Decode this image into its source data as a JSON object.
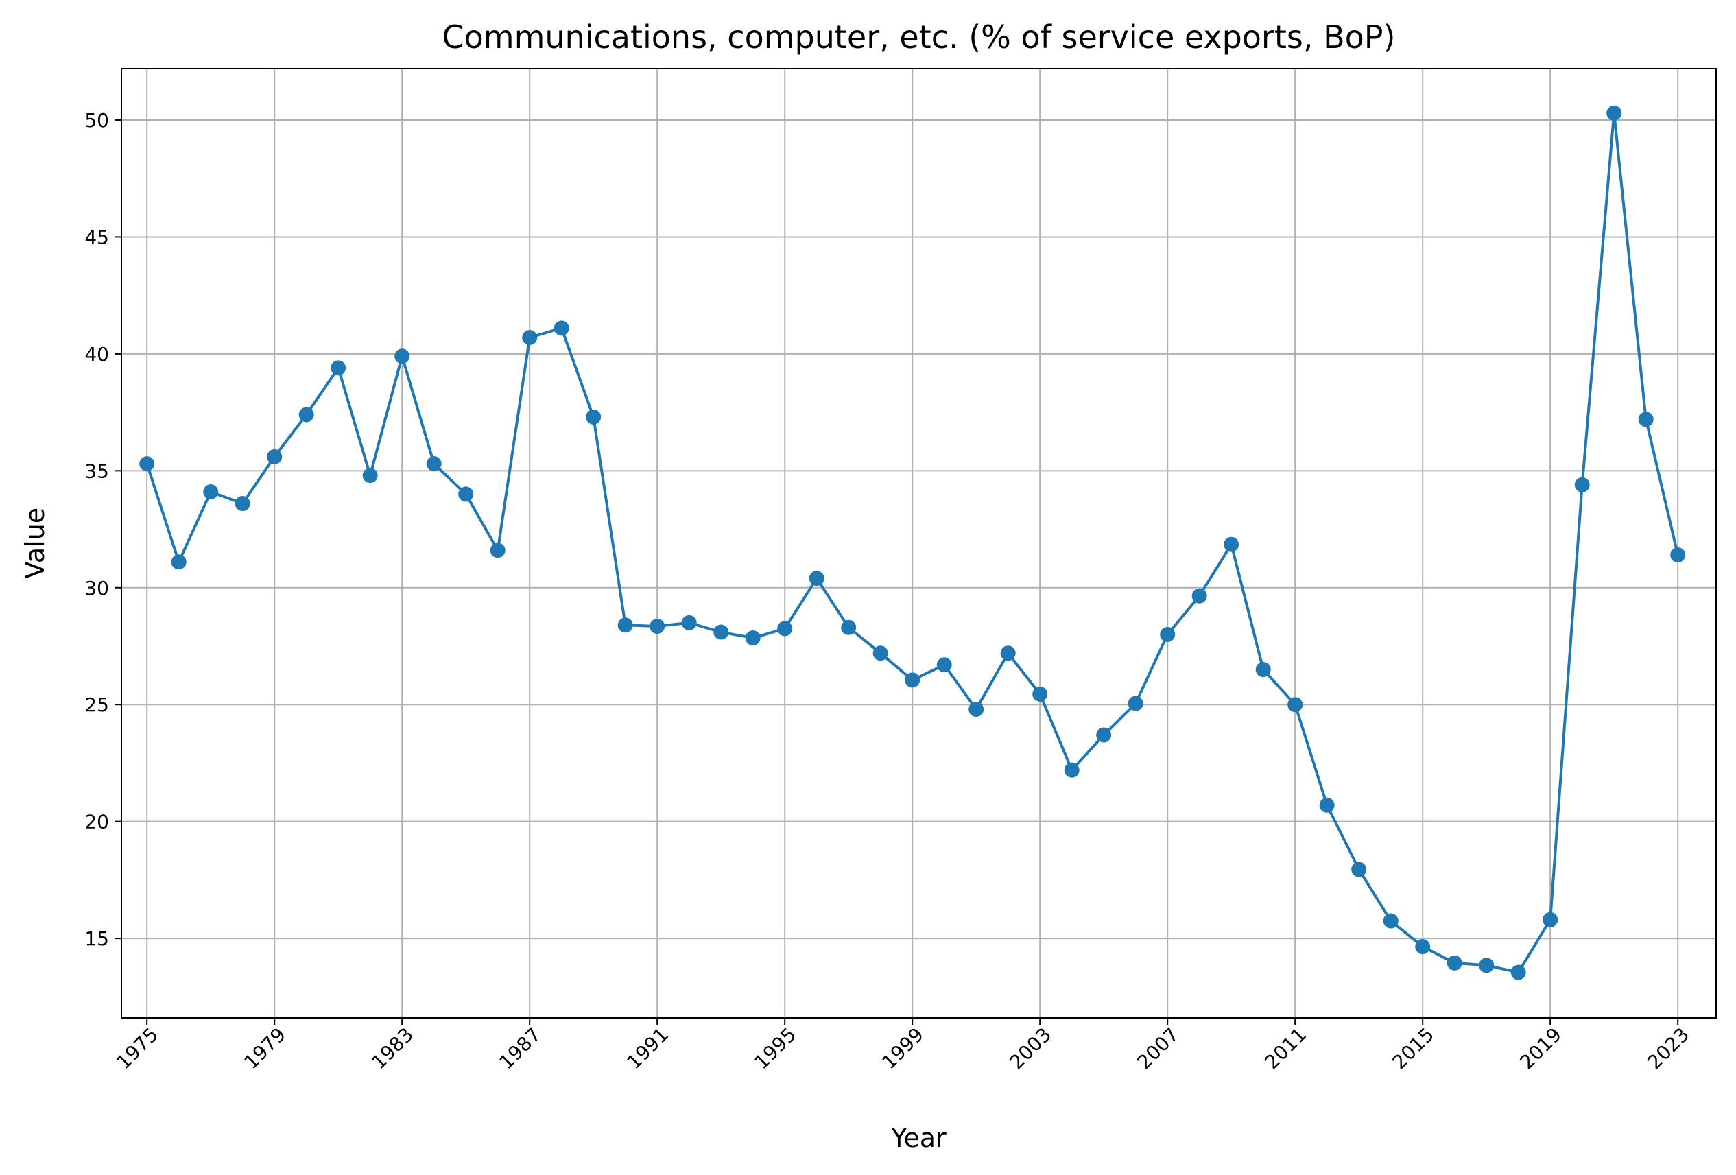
{
  "chart_data": {
    "type": "line",
    "title": "Communications, computer, etc. (% of service exports, BoP)",
    "xlabel": "Year",
    "ylabel": "Value",
    "xlim": [
      1974.2,
      2024.2
    ],
    "ylim": [
      11.6,
      52.2
    ],
    "x_ticks": [
      1975,
      1979,
      1983,
      1987,
      1991,
      1995,
      1999,
      2003,
      2007,
      2011,
      2015,
      2019,
      2023
    ],
    "y_ticks": [
      15,
      20,
      25,
      30,
      35,
      40,
      45,
      50
    ],
    "grid": true,
    "line_color": "#1f77b4",
    "marker": "circle",
    "series": [
      {
        "x": [
          1975,
          1976,
          1977,
          1978,
          1979,
          1980,
          1981,
          1982,
          1983,
          1984,
          1985,
          1986,
          1987,
          1988,
          1989,
          1990,
          1991,
          1992,
          1993,
          1994,
          1995,
          1996,
          1997,
          1998,
          1999,
          2000,
          2001,
          2002,
          2003,
          2004,
          2005,
          2006,
          2007,
          2008,
          2009,
          2010,
          2011,
          2012,
          2013,
          2014,
          2015,
          2016,
          2017,
          2018,
          2019,
          2020,
          2021,
          2022,
          2023
        ],
        "values": [
          35.3,
          31.1,
          34.1,
          33.6,
          35.6,
          37.4,
          39.4,
          34.8,
          39.9,
          35.3,
          34.0,
          31.6,
          40.7,
          41.1,
          37.3,
          28.4,
          28.35,
          28.5,
          28.1,
          27.85,
          28.25,
          30.4,
          28.3,
          27.2,
          26.05,
          26.7,
          24.8,
          27.2,
          25.45,
          22.2,
          23.7,
          25.05,
          28.0,
          29.65,
          31.85,
          26.5,
          25.0,
          20.7,
          17.95,
          15.75,
          14.65,
          13.95,
          13.85,
          13.55,
          15.8,
          34.4,
          50.3,
          37.2,
          31.4
        ]
      }
    ]
  }
}
